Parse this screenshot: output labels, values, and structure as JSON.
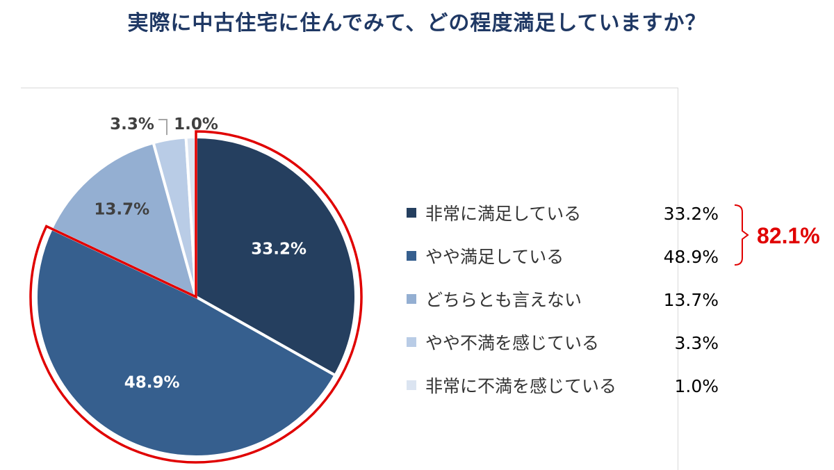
{
  "title": "実際に中古住宅に住んでみて、どの程度満足していますか？",
  "chart_data": {
    "type": "pie",
    "title": "実際に中古住宅に住んでみて、どの程度満足していますか？",
    "slices": [
      {
        "label": "非常に満足している",
        "value": 33.2,
        "display": "33.2%",
        "color": "#253f5f"
      },
      {
        "label": "やや満足している",
        "value": 48.9,
        "display": "48.9%",
        "color": "#365f8e"
      },
      {
        "label": "どちらとも言えない",
        "value": 13.7,
        "display": "13.7%",
        "color": "#94afd2"
      },
      {
        "label": "やや不満を感じている",
        "value": 3.3,
        "display": "3.3%",
        "color": "#b9cce6"
      },
      {
        "label": "非常に不満を感じている",
        "value": 1.0,
        "display": "1.0%",
        "color": "#dbe4f1"
      }
    ],
    "highlight": {
      "slices": [
        0,
        1
      ],
      "total_label": "82.1%",
      "color": "#e00000"
    },
    "legend_position": "right"
  }
}
